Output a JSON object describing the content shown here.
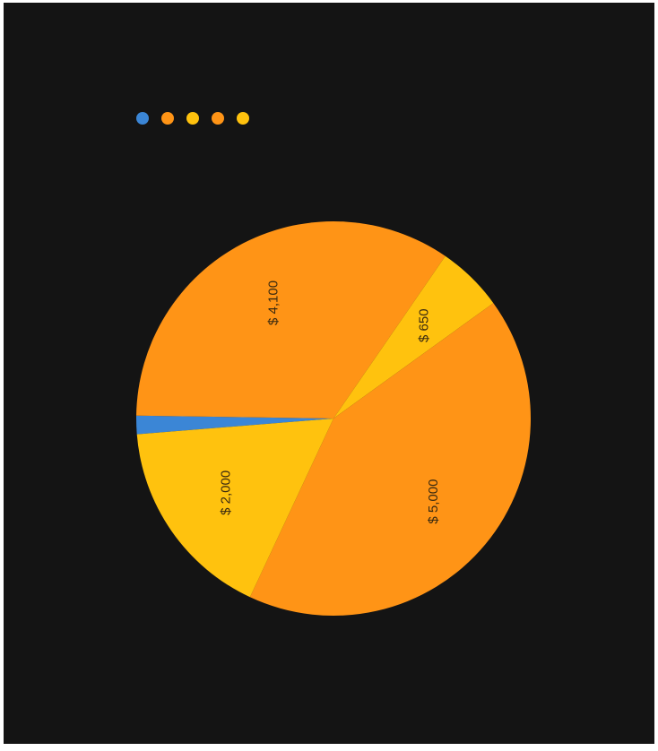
{
  "chart_data": {
    "type": "pie",
    "slices": [
      {
        "value": 180,
        "label": "",
        "color": "#3b86d6"
      },
      {
        "value": 4100,
        "label": "$ 4,100",
        "color": "#ff9416"
      },
      {
        "value": 650,
        "label": "$ 650",
        "color": "#ffc20e"
      },
      {
        "value": 5000,
        "label": "$ 5,000",
        "color": "#ff9416"
      },
      {
        "value": 2000,
        "label": "$ 2,000",
        "color": "#ffc20e"
      }
    ],
    "legend_colors": [
      "#3b86d6",
      "#ff9416",
      "#ffc20e",
      "#ff9416",
      "#ffc20e"
    ],
    "legend_position": "top-left",
    "labels_rotated": true
  }
}
